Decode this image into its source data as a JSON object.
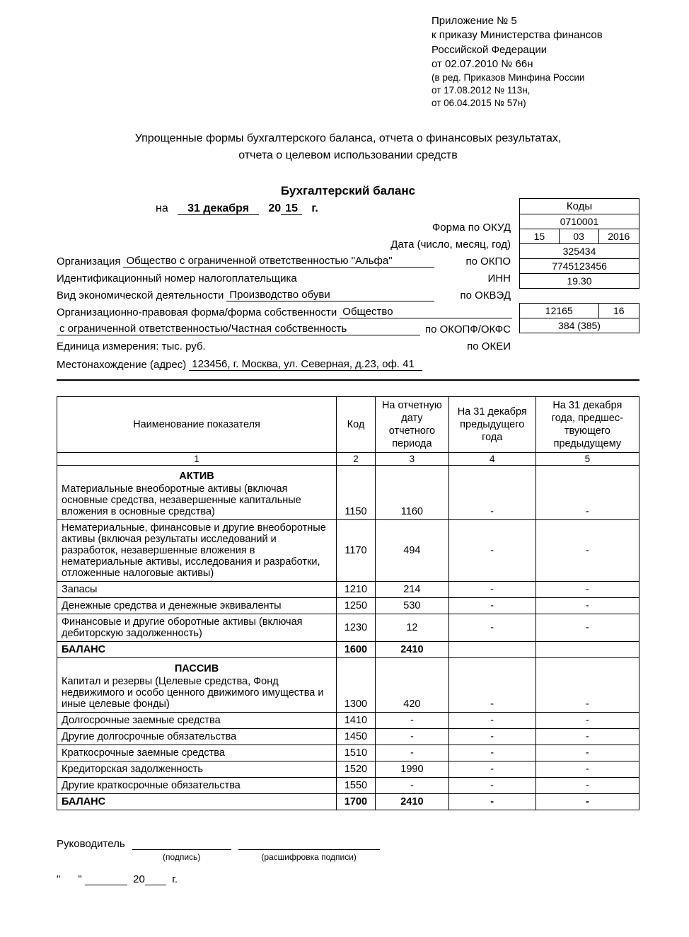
{
  "appendix": {
    "line1": "Приложение № 5",
    "line2": "к приказу Министерства финансов",
    "line3": "Российской Федерации",
    "line4": "от 02.07.2010 № 66н",
    "line5": "(в ред. Приказов Минфина России",
    "line6": "от 17.08.2012 № 113н,",
    "line7": "от 06.04.2015 № 57н)"
  },
  "titles": {
    "l1": "Упрощенные формы бухгалтерского баланса, отчета о финансовых результатах,",
    "l2": "отчета о целевом использовании средств"
  },
  "form_title": "Бухгалтерский баланс",
  "date": {
    "prefix": "на",
    "day_month": "31 декабря",
    "yy_prefix": "20",
    "yy": "15",
    "suffix": "г."
  },
  "codes_header": "Коды",
  "codes": {
    "okud_label": "Форма по ОКУД",
    "okud": "0710001",
    "date_label": "Дата (число, месяц, год)",
    "date_d": "15",
    "date_m": "03",
    "date_y": "2016",
    "org_label": "Организация",
    "org_value": "Общество с ограниченной ответственностью \"Альфа\"",
    "okpo_label": "по ОКПО",
    "okpo": "325434",
    "inn_label": "Идентификационный номер налогоплательщика",
    "inn_rlabel": "ИНН",
    "inn": "7745123456",
    "okved_label": "Вид экономической деятельности",
    "okved_value": "Производство обуви",
    "okved_rlabel": "по ОКВЭД",
    "okved": "19.30",
    "okopf_label1": "Организационно-правовая форма/форма собственности",
    "okopf_value1": "Общество",
    "okopf_value2": "с ограниченной ответственностью/Частная собственность",
    "okopf_rlabel": "по ОКОПФ/ОКФС",
    "okopf": "12165",
    "okfs": "16",
    "okei_label": "Единица измерения: тыс. руб.",
    "okei_rlabel": "по ОКЕИ",
    "okei": "384 (385)",
    "addr_label": "Местонахождение (адрес)",
    "addr_value": "123456, г. Москва, ул. Северная, д.23, оф. 41"
  },
  "table": {
    "headers": {
      "name": "Наименование показателя",
      "code": "Код",
      "col3": "На отчетную дату отчетного периода",
      "col4": "На 31 декабря предыдущего года",
      "col5": "На 31 декабря года, предшес-твующего предыдущему"
    },
    "colnums": [
      "1",
      "2",
      "3",
      "4",
      "5"
    ],
    "aktiv_title": "АКТИВ",
    "passiv_title": "ПАССИВ",
    "aktiv": [
      {
        "name": "Материальные внеоборотные активы (включая основные средства, незавершенные капитальные вложения в основные средства)",
        "code": "1150",
        "v3": "1160",
        "v4": "-",
        "v5": "-"
      },
      {
        "name": "Нематериальные, финансовые и другие внеоборотные активы (включая результаты исследований и разработок, незавершенные вложения в нематериальные активы, исследования и разработки, отложенные налоговые активы)",
        "code": "1170",
        "v3": "494",
        "v4": "-",
        "v5": "-"
      },
      {
        "name": "Запасы",
        "code": "1210",
        "v3": "214",
        "v4": "-",
        "v5": "-"
      },
      {
        "name": "Денежные средства и денежные эквиваленты",
        "code": "1250",
        "v3": "530",
        "v4": "-",
        "v5": "-"
      },
      {
        "name": "Финансовые и другие оборотные активы (включая дебиторскую задолженность)",
        "code": "1230",
        "v3": "12",
        "v4": "-",
        "v5": "-"
      }
    ],
    "aktiv_total": {
      "name": "БАЛАНС",
      "code": "1600",
      "v3": "2410",
      "v4": "",
      "v5": ""
    },
    "passiv": [
      {
        "name": "Капитал и резервы (Целевые средства, Фонд недвижимого и особо ценного движимого имущества и иные целевые фонды)",
        "code": "1300",
        "v3": "420",
        "v4": "-",
        "v5": "-"
      },
      {
        "name": "Долгосрочные заемные средства",
        "code": "1410",
        "v3": "-",
        "v4": "-",
        "v5": "-"
      },
      {
        "name": "Другие долгосрочные обязательства",
        "code": "1450",
        "v3": "-",
        "v4": "-",
        "v5": "-"
      },
      {
        "name": "Краткосрочные заемные средства",
        "code": "1510",
        "v3": "-",
        "v4": "-",
        "v5": "-"
      },
      {
        "name": "Кредиторская задолженность",
        "code": "1520",
        "v3": "1990",
        "v4": "-",
        "v5": "-"
      },
      {
        "name": "Другие краткосрочные обязательства",
        "code": "1550",
        "v3": "-",
        "v4": "-",
        "v5": "-"
      }
    ],
    "passiv_total": {
      "name": "БАЛАНС",
      "code": "1700",
      "v3": "2410",
      "v4": "-",
      "v5": "-"
    }
  },
  "sign": {
    "leader": "Руководитель",
    "sig_cap": "(подпись)",
    "name_cap": "(расшифровка подписи)",
    "yy_prefix": "20",
    "g": "г."
  }
}
